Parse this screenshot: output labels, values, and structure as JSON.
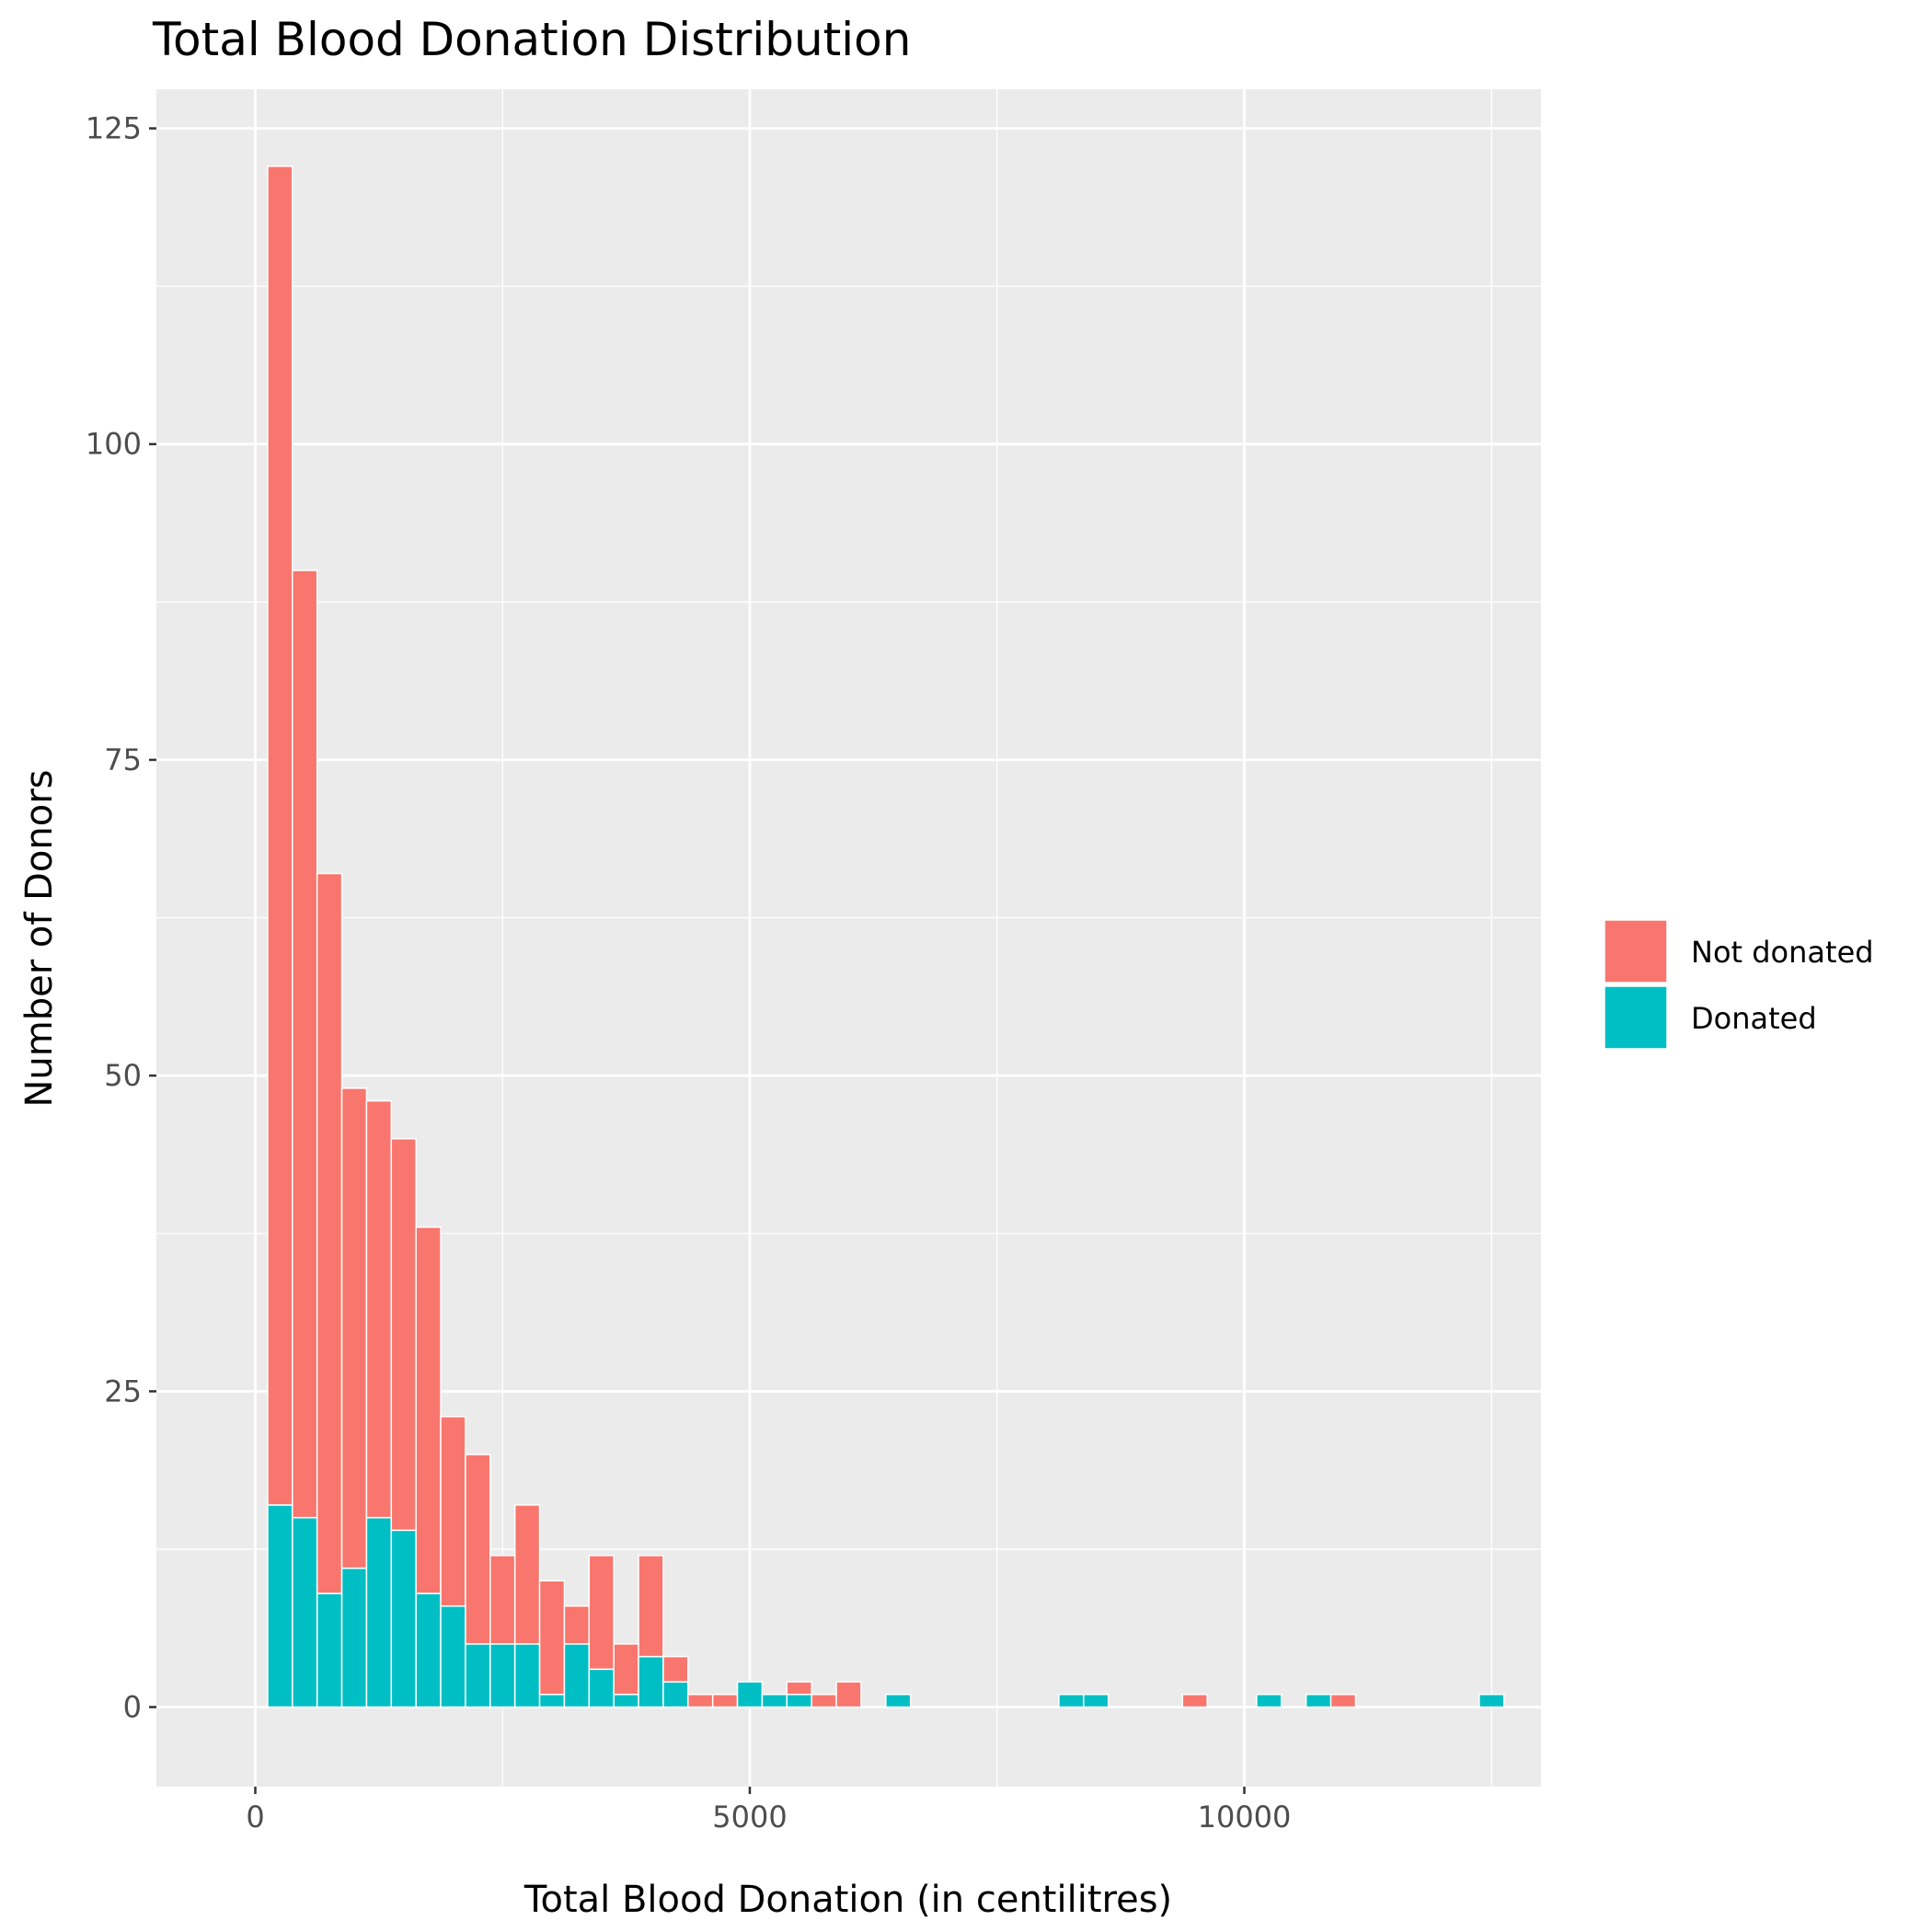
{
  "chart_data": {
    "type": "bar",
    "stacked": true,
    "title": "Total Blood Donation Distribution",
    "xlabel": "Total Blood Donation (in centilitres)",
    "ylabel": "Number of Donors",
    "xlim": [
      -1000,
      13000
    ],
    "ylim": [
      -6.3,
      128.1
    ],
    "x_ticks": [
      0,
      5000,
      10000
    ],
    "x_tick_labels": [
      "0",
      "5000",
      "10000"
    ],
    "y_ticks": [
      0,
      25,
      50,
      75,
      100,
      125
    ],
    "y_tick_labels": [
      "0",
      "25",
      "50",
      "75",
      "100",
      "125"
    ],
    "bin_width": 250,
    "grid": true,
    "legend_position": "right",
    "x": [
      250,
      500,
      750,
      1000,
      1250,
      1500,
      1750,
      2000,
      2250,
      2500,
      2750,
      3000,
      3250,
      3500,
      3750,
      4000,
      4250,
      4500,
      4750,
      5000,
      5250,
      5500,
      5750,
      6000,
      6250,
      6500,
      6750,
      7000,
      7250,
      7500,
      7750,
      8000,
      8250,
      8500,
      8750,
      9000,
      9250,
      9500,
      9750,
      10000,
      10250,
      10500,
      10750,
      11000,
      11250,
      11500,
      11750,
      12000,
      12250,
      12500
    ],
    "series": [
      {
        "name": "Not donated",
        "color": "#f8766d",
        "values": [
          106,
          75,
          57,
          38,
          33,
          31,
          29,
          15,
          15,
          7,
          11,
          9,
          3,
          9,
          4,
          8,
          2,
          1,
          1,
          0,
          0,
          1,
          1,
          2,
          0,
          0,
          0,
          0,
          0,
          0,
          0,
          0,
          0,
          0,
          0,
          0,
          0,
          1,
          0,
          0,
          0,
          0,
          0,
          1,
          0,
          0,
          0,
          0,
          0,
          0
        ]
      },
      {
        "name": "Donated",
        "color": "#00bfc4",
        "values": [
          16,
          15,
          9,
          11,
          15,
          14,
          9,
          8,
          5,
          5,
          5,
          1,
          5,
          3,
          1,
          4,
          2,
          0,
          0,
          2,
          1,
          1,
          0,
          0,
          0,
          1,
          0,
          0,
          0,
          0,
          0,
          0,
          1,
          1,
          0,
          0,
          0,
          0,
          0,
          0,
          1,
          0,
          1,
          0,
          0,
          0,
          0,
          0,
          0,
          1
        ]
      }
    ]
  },
  "colors": {
    "panel_background": "#ebebeb",
    "grid_major": "#ffffff",
    "axis_tick": "#333333"
  }
}
